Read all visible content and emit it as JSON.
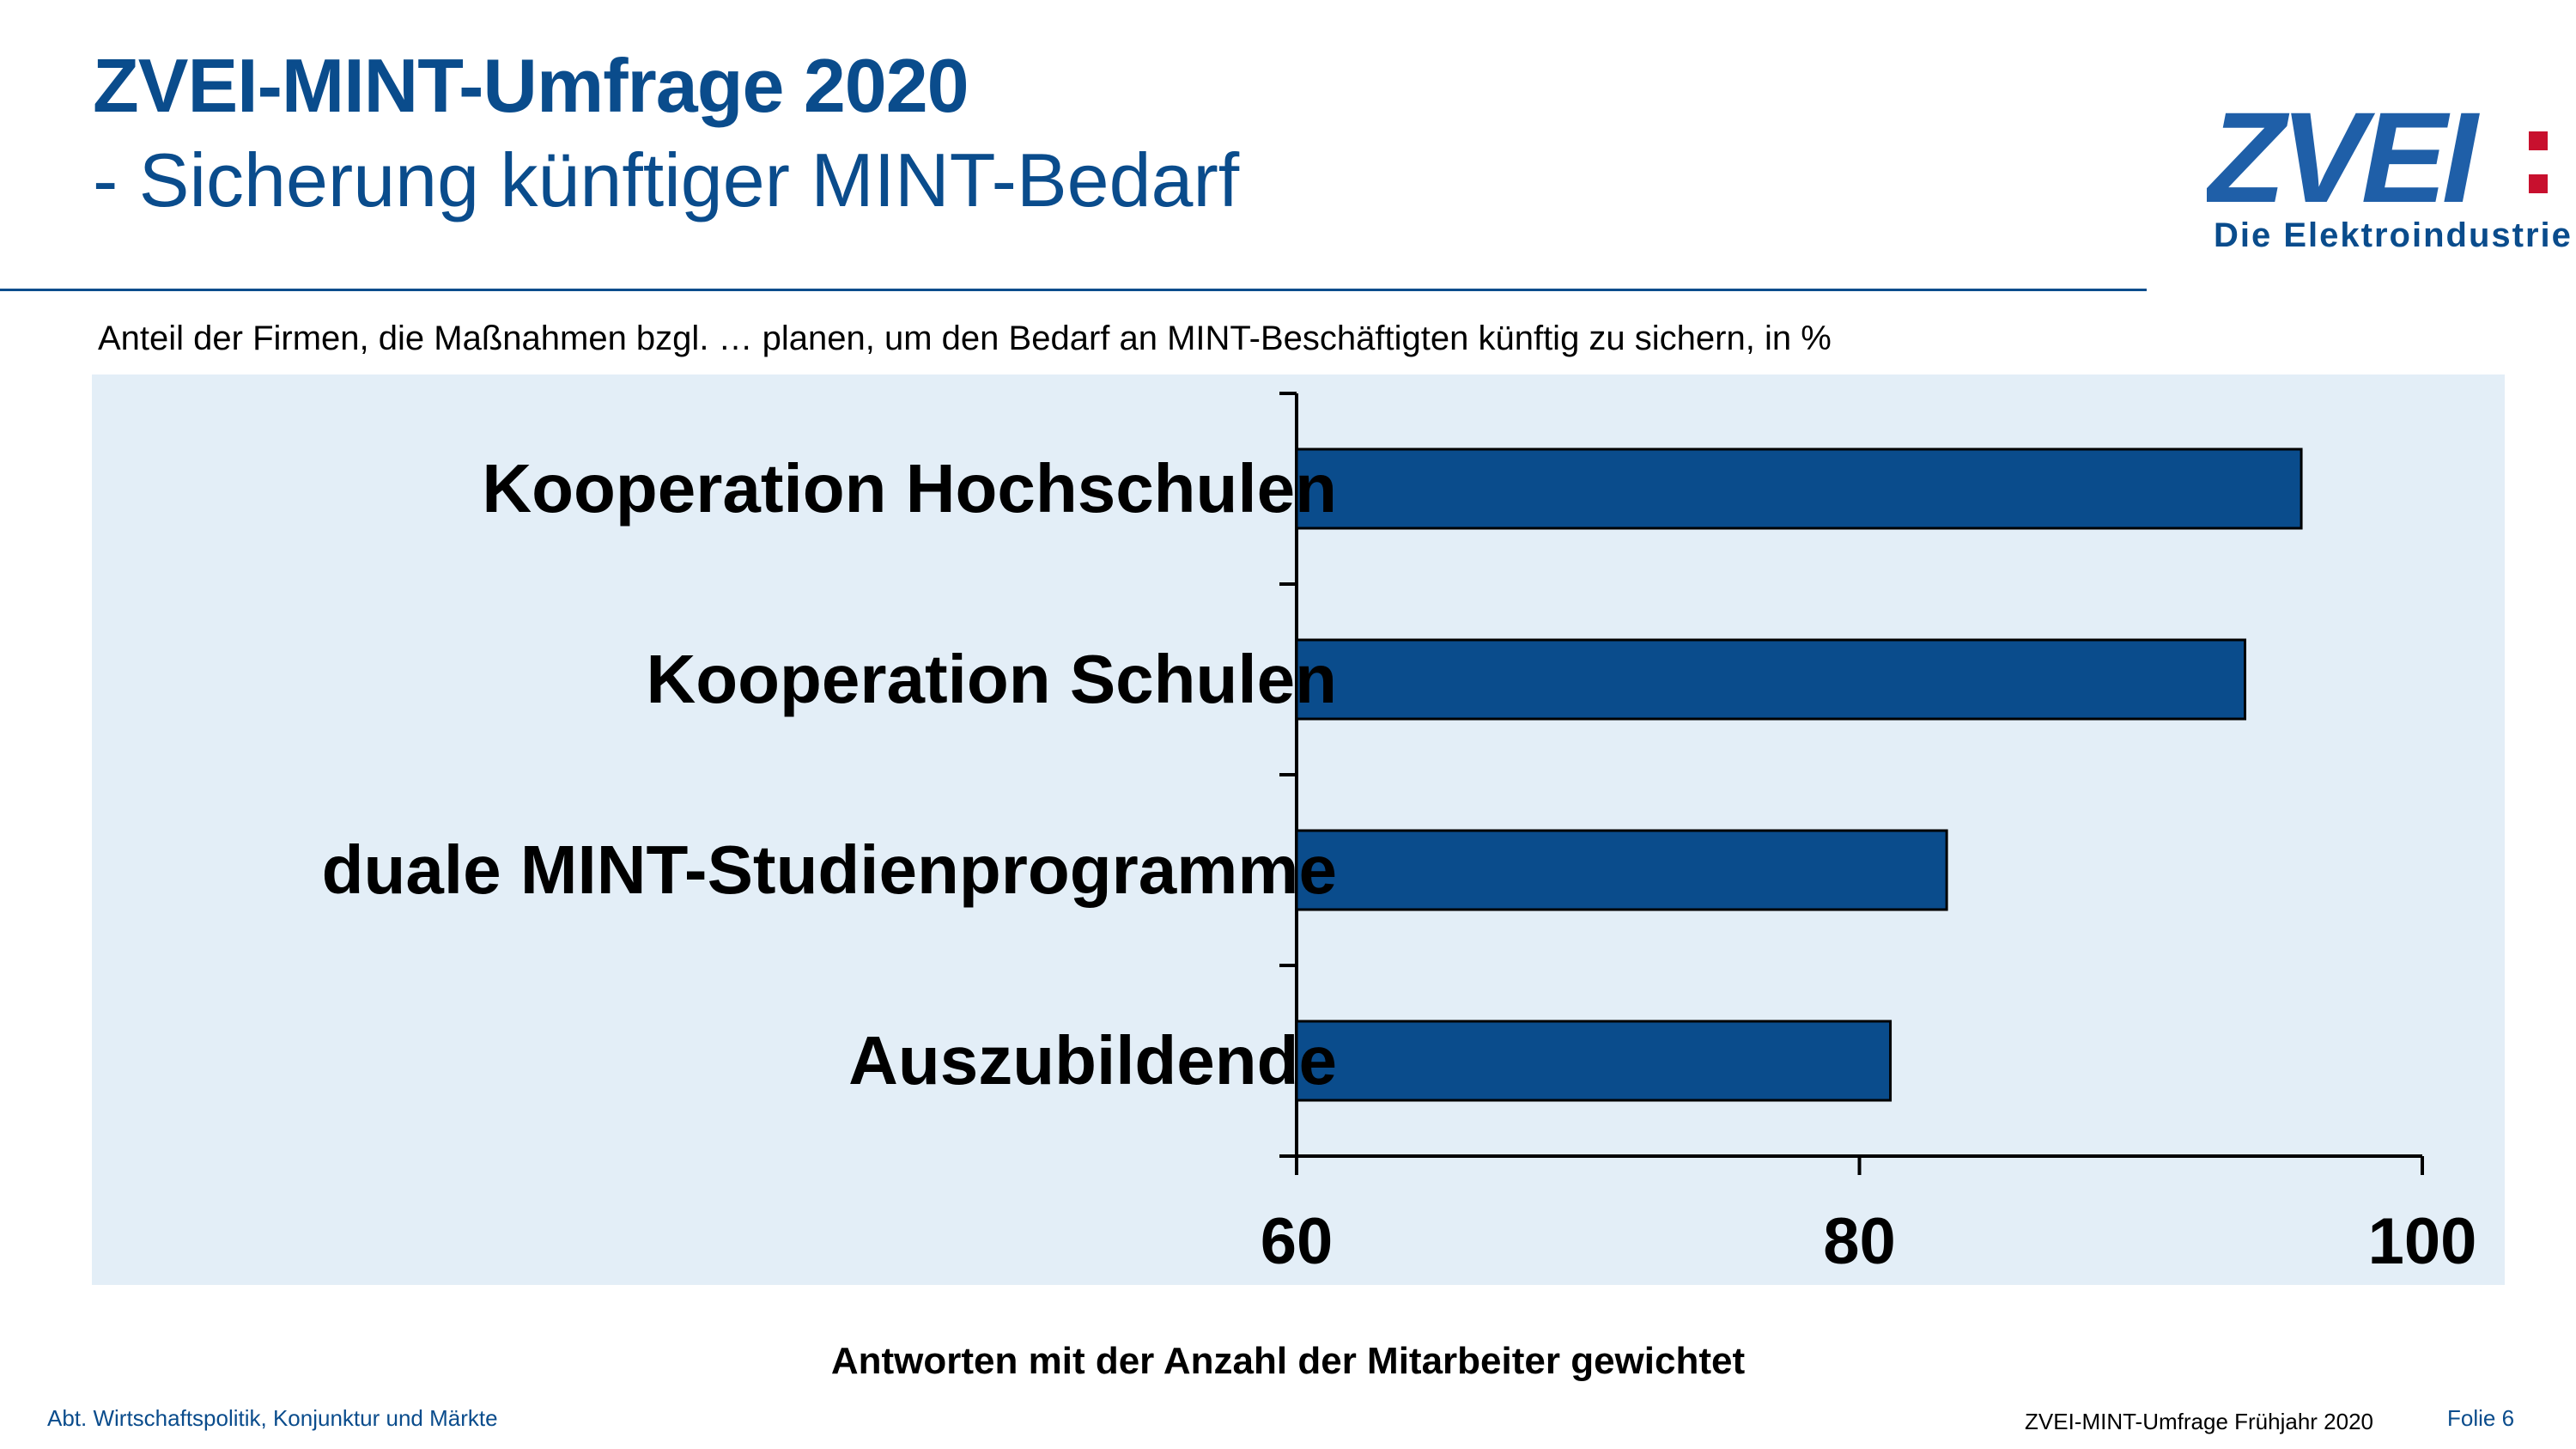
{
  "header": {
    "title": "ZVEI-MINT-Umfrage 2020",
    "subtitle": "- Sicherung künftiger MINT-Bedarf"
  },
  "logo": {
    "text": "ZVEI:",
    "tagline": "Die Elektroindustrie",
    "color": "#1f5fa8",
    "accent": "#c8102e"
  },
  "caption": "Anteil der Firmen, die Maßnahmen bzgl. … planen, um den Bedarf an MINT-Beschäftigten künftig zu sichern, in %",
  "chart_data": {
    "type": "bar",
    "orientation": "horizontal",
    "categories": [
      "Kooperation Hochschulen",
      "Kooperation Schulen",
      "duale MINT-Studienprogramme",
      "Auszubildende"
    ],
    "values": [
      95.7,
      93.7,
      83.1,
      81.1
    ],
    "xlim": [
      60,
      100
    ],
    "xticks": [
      "60",
      "80",
      "100"
    ],
    "bar_color": "#0a4c8c",
    "background": "#e3eef7",
    "grid": false,
    "legend": "none"
  },
  "note": "Antworten mit der Anzahl der Mitarbeiter gewichtet",
  "footer": {
    "left": "Abt. Wirtschaftspolitik, Konjunktur und Märkte",
    "middle": "ZVEI-MINT-Umfrage Frühjahr 2020",
    "right": "Folie 6"
  }
}
